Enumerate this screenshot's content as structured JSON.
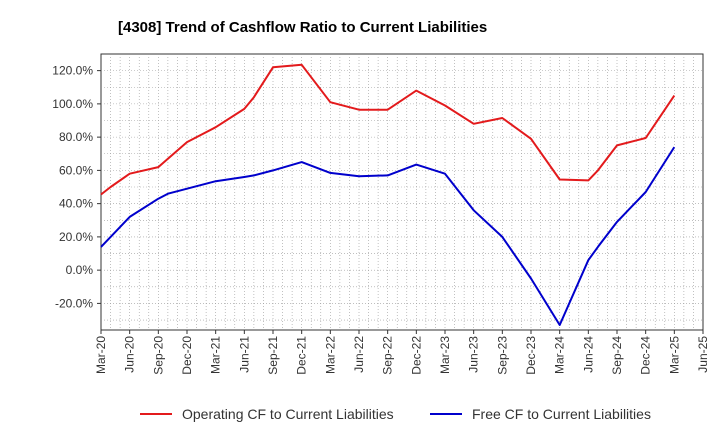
{
  "chart_data": {
    "type": "line",
    "title": "[4308]  Trend of Cashflow Ratio to Current Liabilities",
    "xlabel": "",
    "ylabel": "",
    "ylim": [
      -36,
      130
    ],
    "y_ticks": [
      -20,
      0,
      20,
      40,
      60,
      80,
      100,
      120
    ],
    "y_tick_format": "{v}.0%",
    "grid": true,
    "legend_position": "bottom",
    "x_ticks": [
      "Mar-20",
      "Jun-20",
      "Sep-20",
      "Dec-20",
      "Mar-21",
      "Jun-21",
      "Sep-21",
      "Dec-21",
      "Mar-22",
      "Jun-22",
      "Sep-22",
      "Dec-22",
      "Mar-23",
      "Jun-23",
      "Sep-23",
      "Dec-23",
      "Mar-24",
      "Jun-24",
      "Sep-24",
      "Dec-24",
      "Mar-25",
      "Jun-25"
    ],
    "x": [
      "Mar-20",
      "Apr-20",
      "Jun-20",
      "Sep-20",
      "Oct-20",
      "Dec-20",
      "Mar-21",
      "Jun-21",
      "Jul-21",
      "Sep-21",
      "Dec-21",
      "Mar-22",
      "Jun-22",
      "Sep-22",
      "Dec-22",
      "Mar-23",
      "Jun-23",
      "Sep-23",
      "Dec-23",
      "Mar-24",
      "Jun-24",
      "Jul-24",
      "Sep-24",
      "Dec-24",
      "Mar-25"
    ],
    "series": [
      {
        "name": "Operating CF to Current Liabilities",
        "color": "#e31a1c",
        "values": [
          45.5,
          50,
          58,
          62,
          67,
          77,
          86,
          97,
          104,
          122,
          123.5,
          101,
          96.5,
          96.5,
          108,
          99,
          88,
          91.5,
          79,
          54.5,
          54,
          60,
          75,
          79.5,
          105
        ]
      },
      {
        "name": "Free CF to Current Liabilities",
        "color": "#0000cc",
        "values": [
          14,
          20,
          32,
          43,
          46,
          49,
          53.5,
          56,
          57,
          60,
          65,
          58.5,
          56.5,
          57,
          63.5,
          58,
          36,
          20,
          -5,
          -33,
          6,
          14,
          29,
          47,
          74
        ]
      }
    ]
  }
}
